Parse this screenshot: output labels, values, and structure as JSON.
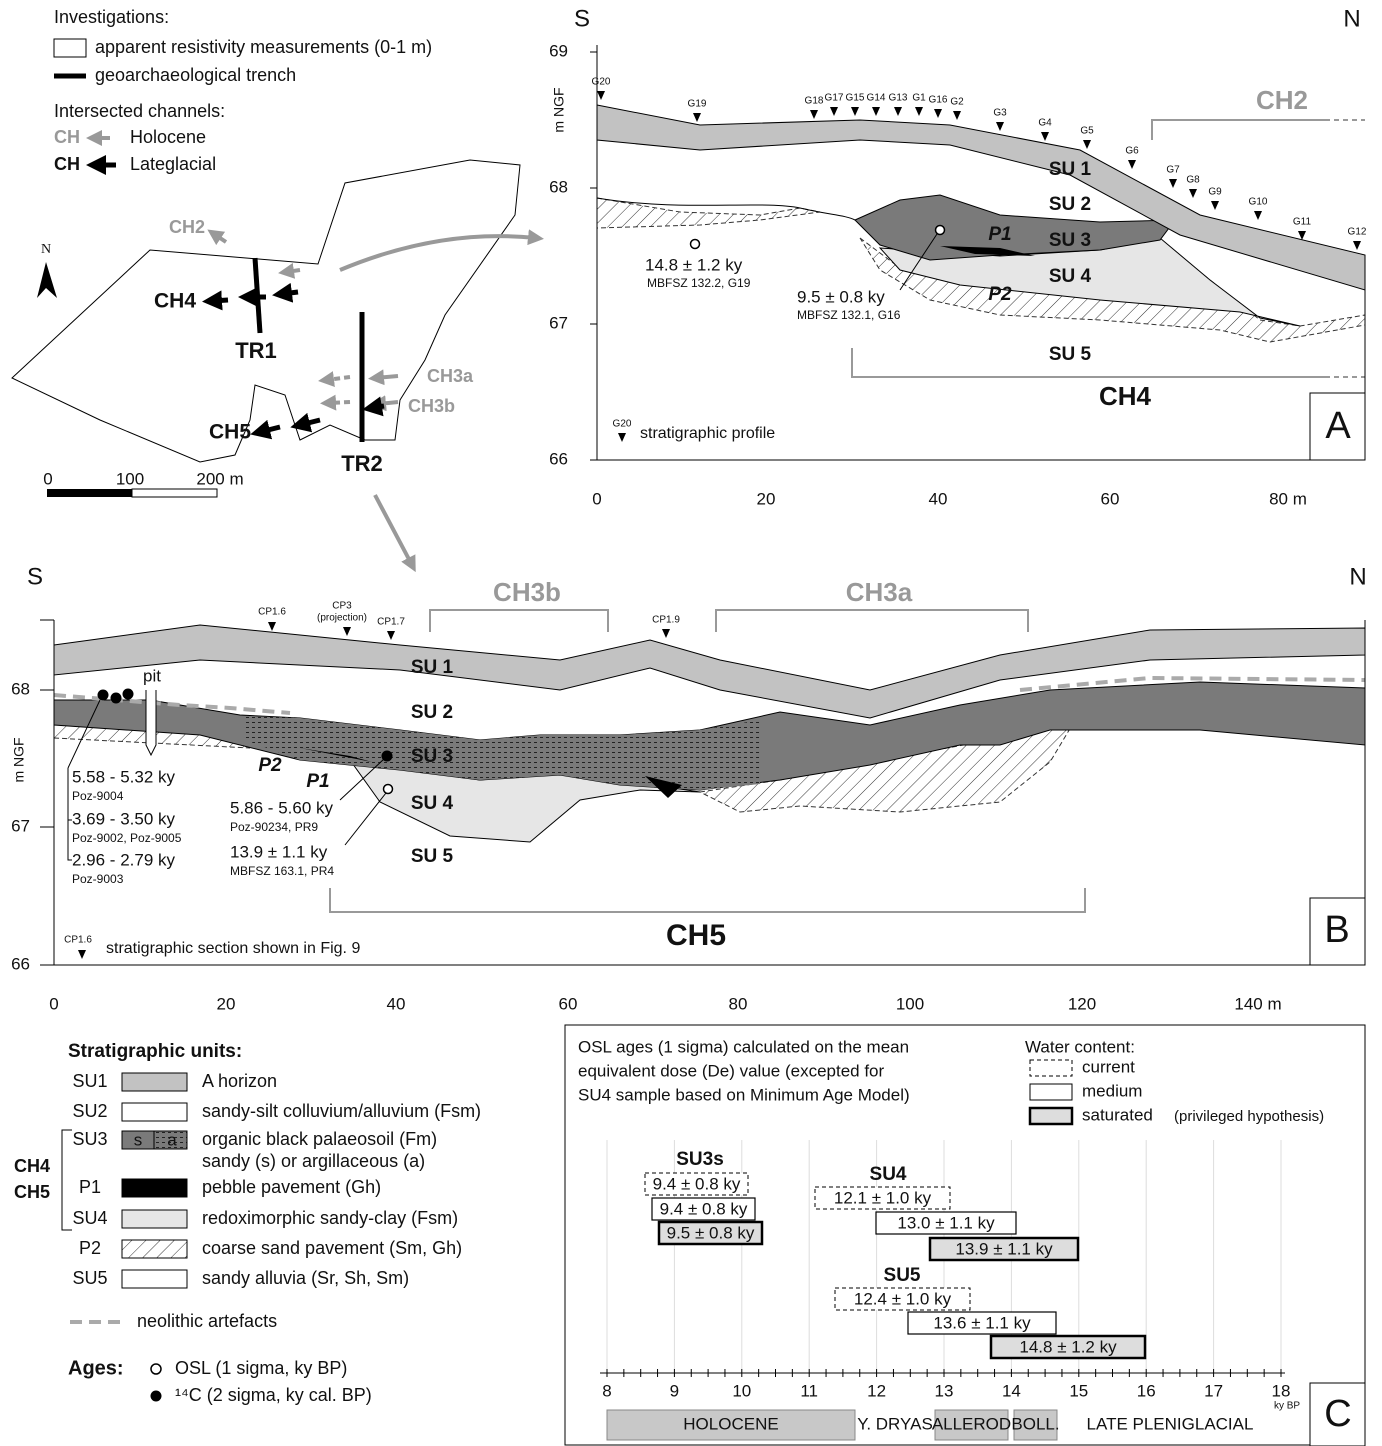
{
  "legend_top": {
    "investigations": "Investigations:",
    "resistivity": "apparent resistivity measurements (0-1 m)",
    "trench": "geoarchaeological trench",
    "channels": "Intersected channels:",
    "holocene_symbol": "CH",
    "holocene": "Holocene",
    "lateglacial_symbol": "CH",
    "lateglacial": "Lateglacial"
  },
  "map": {
    "north": "N",
    "ch2": "CH2",
    "ch4": "CH4",
    "tr1": "TR1",
    "ch3a": "CH3a",
    "ch3b": "CH3b",
    "ch5": "CH5",
    "tr2": "TR2",
    "scale": [
      "0",
      "100",
      "200 m"
    ]
  },
  "panel_a": {
    "south": "S",
    "north": "N",
    "y_label": "m NGF",
    "yticks": [
      "69",
      "68",
      "67",
      "66"
    ],
    "xticks": [
      "0",
      "20",
      "40",
      "60",
      "80 m"
    ],
    "profiles": [
      "G20",
      "G19",
      "G18",
      "G17",
      "G15",
      "G14",
      "G13",
      "G1",
      "G16",
      "G2",
      "G3",
      "G4",
      "G5",
      "G6",
      "G7",
      "G8",
      "G9",
      "G10",
      "G11",
      "G12"
    ],
    "units": [
      "SU 1",
      "SU 2",
      "SU 3",
      "SU 4",
      "SU 5"
    ],
    "p1": "P1",
    "p2": "P2",
    "ch2": "CH2",
    "ch4": "CH4",
    "ages": [
      {
        "age": "14.8 ± 1.2 ky",
        "sample": "MBFSZ 132.2, G19"
      },
      {
        "age": "9.5 ± 0.8 ky",
        "sample": "MBFSZ 132.1, G16"
      }
    ],
    "key_symbol": "G20",
    "key": "stratigraphic profile",
    "letter": "A"
  },
  "panel_b": {
    "south": "S",
    "north": "N",
    "y_label": "m NGF",
    "yticks": [
      "68",
      "67",
      "66"
    ],
    "xticks": [
      "0",
      "20",
      "40",
      "60",
      "80",
      "100",
      "120",
      "140 m"
    ],
    "profiles": [
      "CP1.6",
      "CP3",
      "CP1.7",
      "CP1.9"
    ],
    "projection_note": "(projection)",
    "units": [
      "SU 1",
      "SU 2",
      "SU 3",
      "SU 4",
      "SU 5"
    ],
    "pit": "pit",
    "p1": "P1",
    "p2": "P2",
    "ch3b": "CH3b",
    "ch3a": "CH3a",
    "ch5": "CH5",
    "ages": [
      {
        "age": "5.58 - 5.32 ky",
        "sample": "Poz-9004"
      },
      {
        "age": "3.69 - 3.50 ky",
        "sample": "Poz-9002, Poz-9005"
      },
      {
        "age": "2.96 - 2.79 ky",
        "sample": "Poz-9003"
      },
      {
        "age": "5.86 - 5.60 ky",
        "sample": "Poz-90234, PR9"
      },
      {
        "age": "13.9 ± 1.1 ky",
        "sample": "MBFSZ 163.1, PR4"
      }
    ],
    "key_symbol": "CP1.6",
    "key": "stratigraphic section shown in Fig. 9",
    "letter": "B"
  },
  "units_legend": {
    "title": "Stratigraphic units:",
    "rows": [
      {
        "code": "SU1",
        "desc": "A horizon"
      },
      {
        "code": "SU2",
        "desc": "sandy-silt colluvium/alluvium (Fsm)"
      },
      {
        "code": "SU3",
        "desc": "organic black palaeosoil (Fm)"
      },
      {
        "code": "P1",
        "desc": "pebble pavement (Gh)"
      },
      {
        "code": "SU4",
        "desc": "redoximorphic sandy-clay (Fsm)"
      },
      {
        "code": "P2",
        "desc": "coarse sand pavement (Sm, Gh)"
      },
      {
        "code": "SU5",
        "desc": "sandy alluvia (Sr, Sh, Sm)"
      }
    ],
    "su3_line2": "sandy (s) or argillaceous (a)",
    "swatch_s": "s",
    "swatch_a": "a",
    "group": [
      "CH4",
      "CH5"
    ],
    "neolithic": "neolithic artefacts",
    "ages_title": "Ages:",
    "osl": "OSL (1 sigma, ky BP)",
    "c14": "¹⁴C (2 sigma, ky cal. BP)"
  },
  "panel_c": {
    "caption": [
      "OSL ages (1 sigma) calculated on the mean",
      "equivalent dose (De) value (excepted for",
      "SU4 sample based on Minimum Age Model)"
    ],
    "water_title": "Water content:",
    "water": [
      "current",
      "medium",
      "saturated"
    ],
    "water_note": "(privileged hypothesis)",
    "groups": [
      {
        "name": "SU3s",
        "ages": [
          "9.4 ± 0.8 ky",
          "9.4 ± 0.8 ky",
          "9.5 ± 0.8 ky"
        ]
      },
      {
        "name": "SU4",
        "ages": [
          "12.1 ± 1.0 ky",
          "13.0 ± 1.1 ky",
          "13.9 ± 1.1 ky"
        ]
      },
      {
        "name": "SU5",
        "ages": [
          "12.4 ± 1.0 ky",
          "13.6 ± 1.1 ky",
          "14.8 ± 1.2 ky"
        ]
      }
    ],
    "xticks": [
      "8",
      "9",
      "10",
      "11",
      "12",
      "13",
      "14",
      "15",
      "16",
      "17",
      "18"
    ],
    "x_unit": "ky BP",
    "periods": [
      "HOLOCENE",
      "Y. DRYAS",
      "ALLEROD",
      "BOLL.",
      "LATE PLENIGLACIAL"
    ],
    "letter": "C"
  }
}
